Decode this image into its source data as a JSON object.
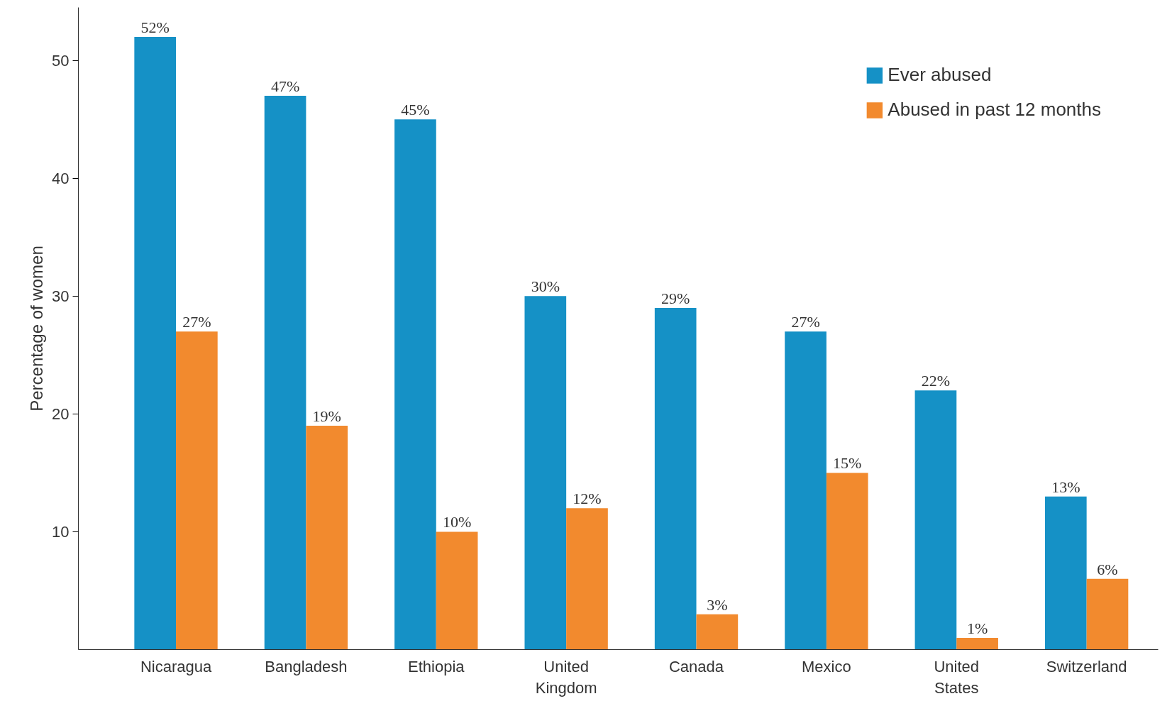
{
  "chart_data": {
    "type": "bar",
    "ylabel": "Percentage of women",
    "categories": [
      "Nicaragua",
      "Bangladesh",
      "Ethiopia",
      "United Kingdom",
      "Canada",
      "Mexico",
      "United States",
      "Switzerland"
    ],
    "series": [
      {
        "name": "Ever abused",
        "color": "#1591c6",
        "values": [
          52,
          47,
          45,
          30,
          29,
          27,
          22,
          13
        ],
        "value_labels": [
          "52%",
          "47%",
          "45%",
          "30%",
          "29%",
          "27%",
          "22%",
          "13%"
        ]
      },
      {
        "name": "Abused in past 12 months",
        "color": "#f28a2e",
        "values": [
          27,
          19,
          10,
          12,
          3,
          15,
          1,
          6
        ],
        "value_labels": [
          "27%",
          "19%",
          "10%",
          "12%",
          "3%",
          "15%",
          "1%",
          "6%"
        ]
      }
    ],
    "ylim": [
      0,
      54.5
    ],
    "yticks": [
      10,
      20,
      30,
      40,
      50
    ],
    "grid": false,
    "legend": "top right"
  }
}
